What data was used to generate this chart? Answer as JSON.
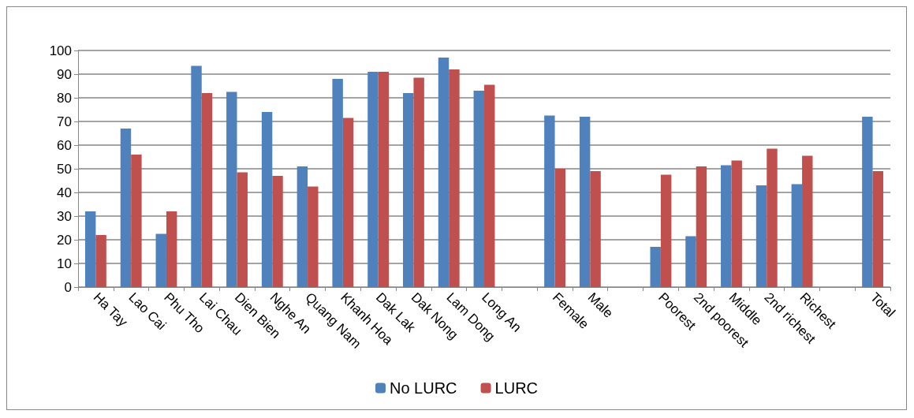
{
  "chart_data": {
    "type": "bar",
    "categories": [
      "Ha Tay",
      "Lao Cai",
      "Phu Tho",
      "Lai Chau",
      "Dien Bien",
      "Nghe An",
      "Quang Nam",
      "Khanh Hoa",
      "Dak Lak",
      "Dak Nong",
      "Lam Dong",
      "Long An",
      null,
      "Female",
      "Male",
      null,
      "Poorest",
      "2nd poorest",
      "Middle",
      "2nd richest",
      "Richest",
      null,
      "Total"
    ],
    "series": [
      {
        "name": "No LURC",
        "color": "#4f81bd",
        "values": [
          32,
          67,
          22.5,
          93.5,
          82.5,
          74,
          51,
          88,
          91,
          82,
          97,
          83,
          null,
          72.5,
          72,
          null,
          17,
          21.5,
          51.5,
          43,
          43.5,
          null,
          72
        ]
      },
      {
        "name": "LURC",
        "color": "#c0504d",
        "values": [
          22,
          56,
          32,
          82,
          48.5,
          47,
          42.5,
          71.5,
          91,
          88.5,
          92,
          85.5,
          null,
          50,
          49,
          null,
          47.5,
          51,
          53.5,
          58.5,
          55.5,
          null,
          49
        ]
      }
    ],
    "ylim": [
      0,
      100
    ],
    "yticks": [
      0,
      10,
      20,
      30,
      40,
      50,
      60,
      70,
      80,
      90,
      100
    ],
    "grid": "y",
    "legend": "bottom"
  }
}
